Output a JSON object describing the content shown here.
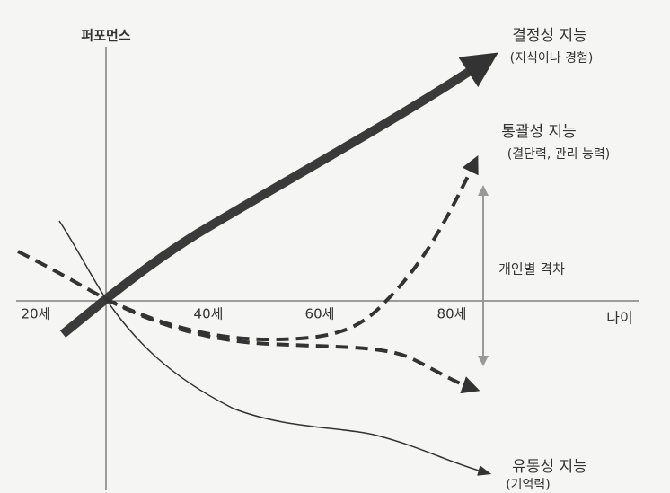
{
  "axes": {
    "y_label": "퍼포먼스",
    "x_label": "나이",
    "x_ticks": [
      "20세",
      "40세",
      "60세",
      "80세"
    ]
  },
  "curves": [
    {
      "label": "결정성 지능",
      "sublabel": "(지식이나 경험)"
    },
    {
      "label": "통괄성 지능",
      "sublabel": "(결단력, 관리 능력)"
    },
    {
      "label": "유동성 지능",
      "sublabel": "(기억력)"
    }
  ],
  "range_label": "개인별 격차"
}
